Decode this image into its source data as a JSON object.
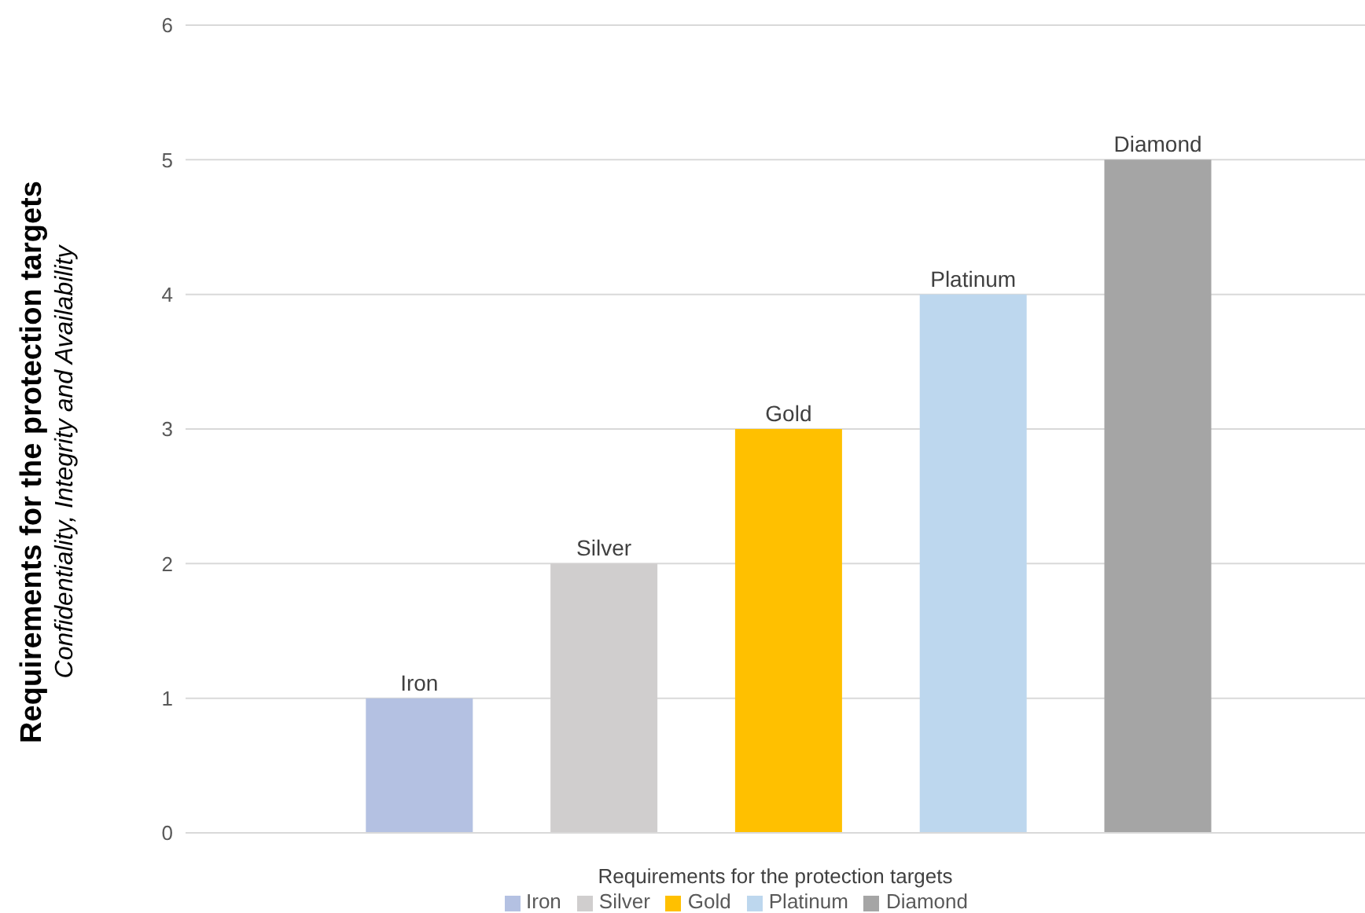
{
  "chart_data": {
    "type": "bar",
    "ylabel": "Requirements for the protection targets",
    "xlabel": "Requirements for the protection targets",
    "annotations": [
      "Confidentiality, Integrity and Availability"
    ],
    "categories": [
      null,
      null,
      null,
      null,
      null
    ],
    "series": [
      {
        "name": "Iron",
        "color": "#b4c1e2",
        "values": [
          1,
          null,
          null,
          null,
          null
        ]
      },
      {
        "name": "Silver",
        "color": "#d0cece",
        "values": [
          null,
          2,
          null,
          null,
          null
        ]
      },
      {
        "name": "Gold",
        "color": "#ffc000",
        "values": [
          null,
          null,
          3,
          null,
          null
        ]
      },
      {
        "name": "Platinum",
        "color": "#bdd7ee",
        "values": [
          null,
          null,
          null,
          4,
          null
        ]
      },
      {
        "name": "Diamond",
        "color": "#a5a5a5",
        "values": [
          null,
          null,
          null,
          null,
          5
        ]
      }
    ],
    "stacked": true,
    "ylim": [
      0,
      6
    ],
    "yticks": [
      0,
      1,
      2,
      3,
      4,
      5,
      6
    ],
    "grid": "y",
    "legend": "bottom",
    "tick_labels": "y"
  }
}
